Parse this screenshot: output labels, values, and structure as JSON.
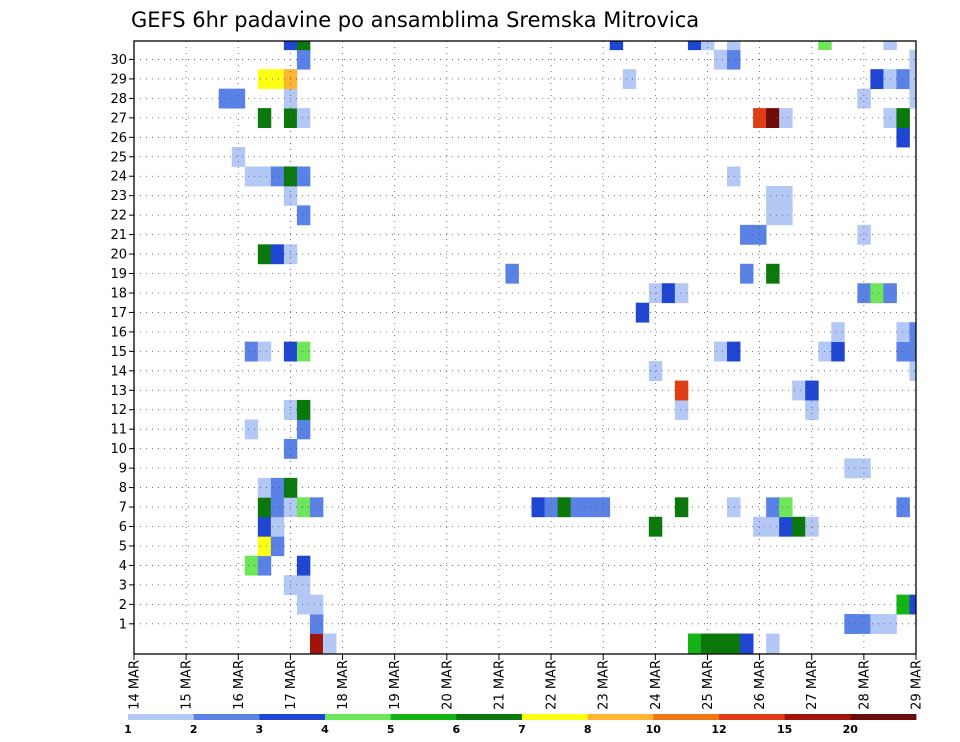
{
  "chart_data": {
    "type": "heatmap",
    "title": "GEFS 6hr padavine po ansamblima Sremska Mitrovica",
    "xlabel": "",
    "ylabel": "",
    "x_tick_labels": [
      "14 MAR",
      "15 MAR",
      "16 MAR",
      "17 MAR",
      "18 MAR",
      "19 MAR",
      "20 MAR",
      "21 MAR",
      "22 MAR",
      "23 MAR",
      "24 MAR",
      "25 MAR",
      "26 MAR",
      "27 MAR",
      "28 MAR",
      "29 MAR"
    ],
    "y_tick_labels": [
      "1",
      "2",
      "3",
      "4",
      "5",
      "6",
      "7",
      "8",
      "9",
      "10",
      "11",
      "12",
      "13",
      "14",
      "15",
      "16",
      "17",
      "18",
      "19",
      "20",
      "21",
      "22",
      "23",
      "24",
      "25",
      "26",
      "27",
      "28",
      "29",
      "30"
    ],
    "xlim": [
      0,
      60
    ],
    "ylim": [
      0,
      30
    ],
    "grid": true,
    "colorbar": {
      "labels": [
        "1",
        "2",
        "3",
        "4",
        "5",
        "6",
        "7",
        "8",
        "10",
        "12",
        "15",
        "20"
      ],
      "colors": [
        "#b4c8f5",
        "#5a82e6",
        "#1e46d2",
        "#6ee65a",
        "#14b414",
        "#0a780a",
        "#ffff14",
        "#ffb432",
        "#f07814",
        "#e13c14",
        "#a0140a",
        "#6e0a0a"
      ]
    },
    "cells_note": "each cell: [time_step_index (6h steps from 14 MAR 00z), ensemble_member (0 = control), color_class 0-11]",
    "cells": [
      [
        14,
        0,
        10
      ],
      [
        15,
        0,
        0
      ],
      [
        43,
        0,
        4
      ],
      [
        44,
        0,
        5
      ],
      [
        45,
        0,
        5
      ],
      [
        46,
        0,
        5
      ],
      [
        47,
        0,
        2
      ],
      [
        49,
        0,
        0
      ],
      [
        14,
        1,
        1
      ],
      [
        55,
        1,
        1
      ],
      [
        56,
        1,
        1
      ],
      [
        57,
        1,
        0
      ],
      [
        58,
        1,
        0
      ],
      [
        13,
        2,
        0
      ],
      [
        14,
        2,
        0
      ],
      [
        59,
        2,
        4
      ],
      [
        60,
        2,
        2
      ],
      [
        12,
        3,
        0
      ],
      [
        13,
        3,
        0
      ],
      [
        9,
        4,
        3
      ],
      [
        10,
        4,
        1
      ],
      [
        13,
        4,
        2
      ],
      [
        10,
        5,
        6
      ],
      [
        11,
        5,
        1
      ],
      [
        10,
        6,
        2
      ],
      [
        11,
        6,
        0
      ],
      [
        40,
        6,
        5
      ],
      [
        48,
        6,
        0
      ],
      [
        49,
        6,
        0
      ],
      [
        50,
        6,
        2
      ],
      [
        51,
        6,
        5
      ],
      [
        52,
        6,
        0
      ],
      [
        10,
        7,
        5
      ],
      [
        11,
        7,
        1
      ],
      [
        12,
        7,
        0
      ],
      [
        13,
        7,
        3
      ],
      [
        14,
        7,
        1
      ],
      [
        31,
        7,
        2
      ],
      [
        32,
        7,
        1
      ],
      [
        33,
        7,
        5
      ],
      [
        34,
        7,
        1
      ],
      [
        35,
        7,
        1
      ],
      [
        36,
        7,
        1
      ],
      [
        42,
        7,
        5
      ],
      [
        46,
        7,
        0
      ],
      [
        49,
        7,
        1
      ],
      [
        50,
        7,
        3
      ],
      [
        59,
        7,
        1
      ],
      [
        10,
        8,
        0
      ],
      [
        11,
        8,
        1
      ],
      [
        12,
        8,
        5
      ],
      [
        55,
        9,
        0
      ],
      [
        56,
        9,
        0
      ],
      [
        12,
        10,
        1
      ],
      [
        9,
        11,
        0
      ],
      [
        13,
        11,
        1
      ],
      [
        12,
        12,
        0
      ],
      [
        13,
        12,
        5
      ],
      [
        42,
        12,
        0
      ],
      [
        52,
        12,
        0
      ],
      [
        42,
        13,
        9
      ],
      [
        51,
        13,
        0
      ],
      [
        52,
        13,
        2
      ],
      [
        40,
        14,
        0
      ],
      [
        60,
        14,
        0
      ],
      [
        9,
        15,
        1
      ],
      [
        10,
        15,
        0
      ],
      [
        12,
        15,
        2
      ],
      [
        13,
        15,
        3
      ],
      [
        45,
        15,
        0
      ],
      [
        46,
        15,
        2
      ],
      [
        53,
        15,
        0
      ],
      [
        54,
        15,
        2
      ],
      [
        59,
        15,
        1
      ],
      [
        60,
        15,
        1
      ],
      [
        54,
        16,
        0
      ],
      [
        59,
        16,
        0
      ],
      [
        60,
        16,
        1
      ],
      [
        39,
        17,
        2
      ],
      [
        40,
        18,
        0
      ],
      [
        41,
        18,
        2
      ],
      [
        42,
        18,
        0
      ],
      [
        56,
        18,
        1
      ],
      [
        57,
        18,
        3
      ],
      [
        58,
        18,
        1
      ],
      [
        29,
        19,
        1
      ],
      [
        47,
        19,
        1
      ],
      [
        49,
        19,
        5
      ],
      [
        10,
        20,
        5
      ],
      [
        11,
        20,
        2
      ],
      [
        12,
        20,
        0
      ],
      [
        47,
        21,
        1
      ],
      [
        48,
        21,
        1
      ],
      [
        56,
        21,
        0
      ],
      [
        13,
        22,
        1
      ],
      [
        49,
        22,
        0
      ],
      [
        50,
        22,
        0
      ],
      [
        12,
        23,
        0
      ],
      [
        49,
        23,
        0
      ],
      [
        50,
        23,
        0
      ],
      [
        9,
        24,
        0
      ],
      [
        10,
        24,
        0
      ],
      [
        11,
        24,
        1
      ],
      [
        12,
        24,
        5
      ],
      [
        13,
        24,
        1
      ],
      [
        46,
        24,
        0
      ],
      [
        8,
        25,
        0
      ],
      [
        59,
        26,
        2
      ],
      [
        10,
        27,
        5
      ],
      [
        12,
        27,
        5
      ],
      [
        13,
        27,
        0
      ],
      [
        48,
        27,
        9
      ],
      [
        49,
        27,
        11
      ],
      [
        50,
        27,
        0
      ],
      [
        58,
        27,
        0
      ],
      [
        59,
        27,
        5
      ],
      [
        7,
        28,
        1
      ],
      [
        8,
        28,
        1
      ],
      [
        12,
        28,
        0
      ],
      [
        56,
        28,
        0
      ],
      [
        60,
        28,
        0
      ],
      [
        10,
        29,
        6
      ],
      [
        11,
        29,
        6
      ],
      [
        12,
        29,
        7
      ],
      [
        38,
        29,
        0
      ],
      [
        57,
        29,
        2
      ],
      [
        58,
        29,
        0
      ],
      [
        59,
        29,
        1
      ],
      [
        60,
        29,
        0
      ],
      [
        13,
        30,
        1
      ],
      [
        45,
        30,
        0
      ],
      [
        46,
        30,
        1
      ],
      [
        60,
        30,
        0
      ],
      [
        12,
        31,
        2
      ],
      [
        13,
        31,
        5
      ],
      [
        37,
        31,
        2
      ],
      [
        43,
        31,
        2
      ],
      [
        44,
        31,
        0
      ],
      [
        46,
        31,
        0
      ],
      [
        53,
        31,
        3
      ],
      [
        58,
        31,
        0
      ]
    ]
  }
}
